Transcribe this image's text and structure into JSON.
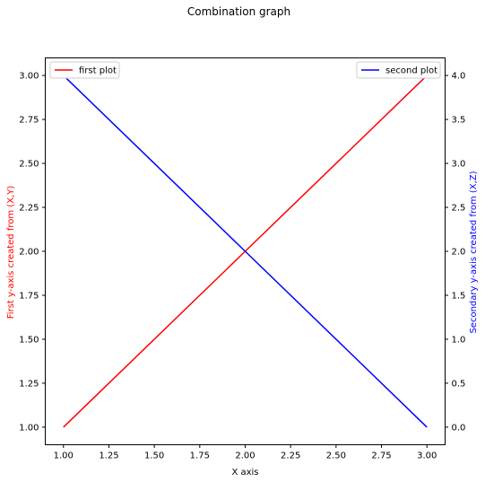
{
  "chart_data": {
    "type": "line",
    "title": "Combination graph",
    "xlabel": "X axis",
    "ylabel_left": "First y-axis created from (X,Y)",
    "ylabel_right": "Secondary y-axis created from (X,Z)",
    "ylabel_left_color": "#ff0000",
    "ylabel_right_color": "#0000ff",
    "xlim": [
      0.9,
      3.1
    ],
    "ylim_left": [
      0.9,
      3.1
    ],
    "ylim_right": [
      -0.2,
      4.2
    ],
    "x_ticks": [
      1.0,
      1.25,
      1.5,
      1.75,
      2.0,
      2.25,
      2.5,
      2.75,
      3.0
    ],
    "x_tick_labels": [
      "1.00",
      "1.25",
      "1.50",
      "1.75",
      "2.00",
      "2.25",
      "2.50",
      "2.75",
      "3.00"
    ],
    "y_left_ticks": [
      1.0,
      1.25,
      1.5,
      1.75,
      2.0,
      2.25,
      2.5,
      2.75,
      3.0
    ],
    "y_left_tick_labels": [
      "1.00",
      "1.25",
      "1.50",
      "1.75",
      "2.00",
      "2.25",
      "2.50",
      "2.75",
      "3.00"
    ],
    "y_right_ticks": [
      0.0,
      0.5,
      1.0,
      1.5,
      2.0,
      2.5,
      3.0,
      3.5,
      4.0
    ],
    "y_right_tick_labels": [
      "0.0",
      "0.5",
      "1.0",
      "1.5",
      "2.0",
      "2.5",
      "3.0",
      "3.5",
      "4.0"
    ],
    "grid": false,
    "series": [
      {
        "name": "first plot",
        "axis": "left",
        "color": "#ff0000",
        "x": [
          1,
          2,
          3
        ],
        "y": [
          1,
          2,
          3
        ],
        "legend_position": "upper left"
      },
      {
        "name": "second plot",
        "axis": "right",
        "color": "#0000ff",
        "x": [
          1,
          2,
          3
        ],
        "y": [
          4,
          2,
          0
        ],
        "legend_position": "upper right"
      }
    ]
  }
}
